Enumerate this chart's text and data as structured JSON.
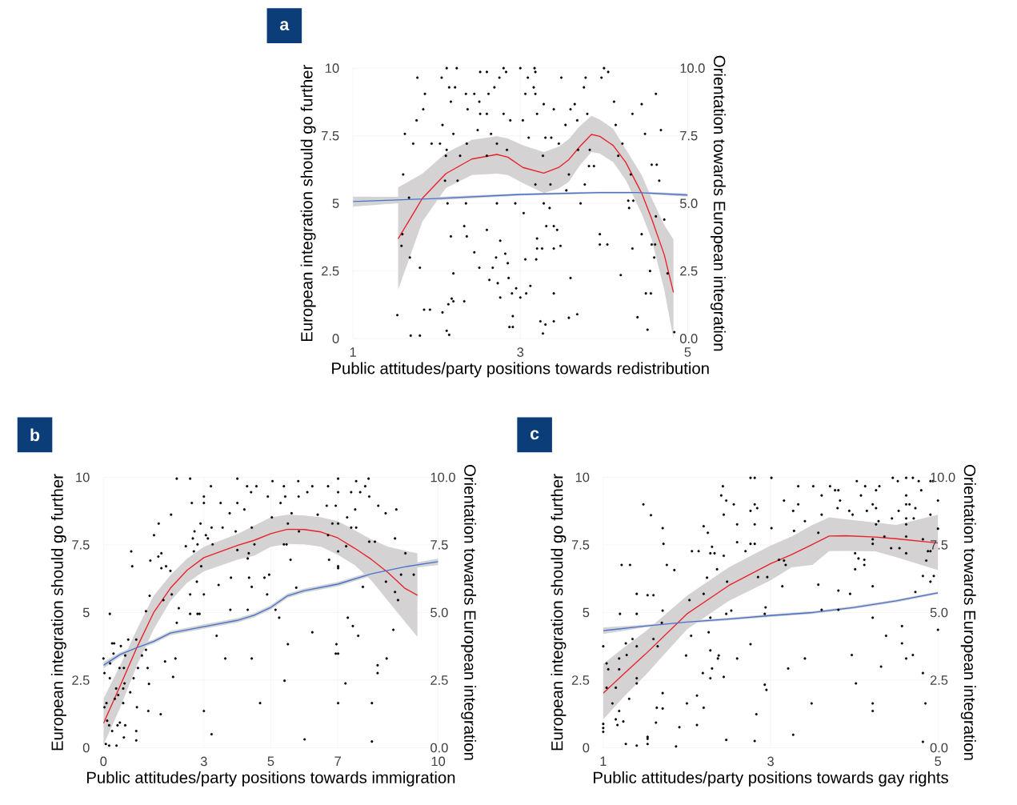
{
  "chart_data": [
    {
      "type": "scatter",
      "title": "a",
      "xlabel": "Public attitudes/party positions towards redistribution",
      "ylabel": "European integration should go further",
      "y2label": "Orientation towards European integration",
      "xlim": [
        1,
        5
      ],
      "xticks": [
        1,
        3,
        5
      ],
      "ylim": [
        0,
        10
      ],
      "yticks": [
        0,
        2.5,
        5,
        7.5,
        10
      ],
      "y2lim": [
        0,
        10
      ],
      "y2ticks": [
        {
          "value": 0,
          "label": "0.0"
        },
        {
          "value": 2.5,
          "label": "2.5"
        },
        {
          "value": 5,
          "label": "5.0"
        },
        {
          "value": 7.5,
          "label": "7.5"
        },
        {
          "value": 10,
          "label": "10.0"
        }
      ],
      "grid": true,
      "series": [
        {
          "color": "#000000",
          "x": [
            2.12,
            2.24,
            2.8,
            3.0,
            3.17,
            4.0,
            2.52,
            2.6,
            2.83,
            3.18,
            4.05,
            1.77,
            2.06,
            2.75,
            3.09,
            3.49,
            3.78,
            3.97,
            2.15,
            2.22,
            2.69,
            3.16,
            3.76,
            1.86,
            2.35,
            2.45,
            2.62,
            3.06,
            3.18,
            4.62,
            2.17,
            2.51,
            4.12,
            3.28,
            3.65,
            4.45,
            1.84,
            2.37,
            3.4,
            3.6,
            2.52,
            2.6,
            2.8,
            3.2,
            3.8,
            4.34,
            1.76,
            2.88,
            3.03,
            3.68,
            2.07,
            3.54,
            4.14,
            2.49,
            4.68,
            1.62,
            2.2,
            2.65,
            4.49,
            3.1,
            3.3,
            3.37,
            1.72,
            1.94,
            2.04,
            2.36,
            2.72,
            3.46,
            4.22,
            2.12,
            2.84,
            3.69,
            3.83,
            2.11,
            2.28,
            2.6,
            3.27,
            4.17,
            4.57,
            4.63,
            3.82,
            3.88,
            1.6,
            3.58,
            4.32,
            2.1,
            2.25,
            4.66,
            3.18,
            3.36,
            3.77,
            3.55,
            1.67,
            4.29,
            4.35,
            2.13,
            2.35,
            2.72,
            2.94,
            3.28,
            3.72,
            3.35,
            4.3,
            3.04,
            4.62,
            4.72,
            2.33,
            3.31,
            3.4,
            2.6,
            3.44,
            1.59,
            3.95,
            4.45,
            2.17,
            2.36,
            3.2,
            2.76,
            3.95,
            4.04,
            4.57,
            4.61,
            1.58,
            3.48,
            3.2,
            3.26,
            3.4,
            4.34,
            2.45,
            2.82,
            1.68,
            2.71,
            4.6,
            3.06,
            3.19,
            2.85,
            1.8,
            2.51,
            2.67,
            4.55,
            2.2,
            4.76,
            4.2,
            2.86,
            3.6,
            2.63,
            2.73,
            3.12,
            2.95,
            2.9,
            3.07,
            3.4,
            4.5,
            4.56,
            2.76,
            3.0,
            2.18,
            2.2,
            2.33,
            2.14,
            1.85,
            1.92,
            2.07,
            3.68,
            1.53,
            2.91,
            4.4,
            3.58,
            3.24,
            3.4,
            3.3,
            2.87,
            2.91,
            4.52,
            2.12,
            4.84,
            3.27,
            2.15,
            1.69,
            1.8
          ],
          "values": [
            10,
            10,
            10,
            10,
            10,
            10,
            9.86,
            9.86,
            9.86,
            9.86,
            9.86,
            9.65,
            9.65,
            9.65,
            9.65,
            9.65,
            9.65,
            9.65,
            9.29,
            9.29,
            9.29,
            9.29,
            9.29,
            9.05,
            9.05,
            9.05,
            9.05,
            9.05,
            9.05,
            9.05,
            8.76,
            8.76,
            8.76,
            8.67,
            8.67,
            8.67,
            8.48,
            8.48,
            8.48,
            8.48,
            8.31,
            8.31,
            8.31,
            8.31,
            8.31,
            8.31,
            8.07,
            8.07,
            8.07,
            8.07,
            7.9,
            7.9,
            7.9,
            7.71,
            7.71,
            7.57,
            7.57,
            7.57,
            7.57,
            7.43,
            7.43,
            7.43,
            7.21,
            7.21,
            7.21,
            7.21,
            7.21,
            7.21,
            7.21,
            6.98,
            6.98,
            6.98,
            6.98,
            6.76,
            6.76,
            6.76,
            6.76,
            6.76,
            6.43,
            6.43,
            6.38,
            6.38,
            6.07,
            6.07,
            6.07,
            5.84,
            5.84,
            5.84,
            5.7,
            5.7,
            5.7,
            5.48,
            5.21,
            5.1,
            5.1,
            5.0,
            5.0,
            5.0,
            5.0,
            5.0,
            5.0,
            4.83,
            4.83,
            4.64,
            4.52,
            4.4,
            4.16,
            4.16,
            4.16,
            4.02,
            4.02,
            3.86,
            3.86,
            3.86,
            3.78,
            3.78,
            3.7,
            3.62,
            3.48,
            3.48,
            3.48,
            3.48,
            3.43,
            3.43,
            3.33,
            3.33,
            3.33,
            3.33,
            3.19,
            3.14,
            3.0,
            3.0,
            3.0,
            2.93,
            2.93,
            2.79,
            2.62,
            2.62,
            2.62,
            2.5,
            2.41,
            2.41,
            2.35,
            2.24,
            2.24,
            2.17,
            2.05,
            1.95,
            1.86,
            1.67,
            1.67,
            1.67,
            1.67,
            1.67,
            1.52,
            1.52,
            1.48,
            1.38,
            1.38,
            1.27,
            1.07,
            1.07,
            0.97,
            0.9,
            0.87,
            0.83,
            0.79,
            0.77,
            0.64,
            0.64,
            0.52,
            0.43,
            0.43,
            0.33,
            0.29,
            0.24,
            0.19,
            0.14,
            0.11,
            0.11
          ]
        },
        {
          "type": "line",
          "color": "#e8212a",
          "x": [
            1.54,
            1.83,
            2.11,
            2.42,
            2.72,
            2.85,
            3.03,
            3.28,
            3.46,
            3.58,
            3.71,
            3.85,
            3.95,
            4.11,
            4.26,
            4.45,
            4.57,
            4.72,
            4.83
          ],
          "values": [
            3.69,
            5.19,
            6.1,
            6.64,
            6.81,
            6.71,
            6.33,
            6.12,
            6.33,
            6.62,
            7.1,
            7.55,
            7.48,
            7.14,
            6.52,
            5.38,
            4.43,
            3.1,
            1.71
          ],
          "upper": [
            5.59,
            6.1,
            6.86,
            7.35,
            7.48,
            7.4,
            7.15,
            6.9,
            7.1,
            7.38,
            7.85,
            8.24,
            8.1,
            7.76,
            7.0,
            6.05,
            5.19,
            4.2,
            3.67
          ],
          "lower": [
            1.81,
            4.33,
            5.57,
            6.05,
            6.1,
            6.05,
            5.75,
            5.38,
            5.55,
            5.8,
            6.4,
            6.9,
            6.85,
            6.52,
            5.86,
            4.62,
            3.67,
            1.8,
            0.0
          ]
        },
        {
          "type": "line",
          "color": "#4a70c9",
          "x": [
            1,
            2,
            3,
            3.95,
            4.4,
            5
          ],
          "values": [
            5.07,
            5.18,
            5.33,
            5.4,
            5.4,
            5.31
          ],
          "lower": [
            4.88,
            5.12,
            5.29,
            5.36,
            5.36,
            5.25
          ],
          "upper": [
            5.25,
            5.24,
            5.37,
            5.44,
            5.44,
            5.37
          ]
        }
      ]
    },
    {
      "type": "scatter",
      "title": "b",
      "xlabel": "Public attitudes/party positions towards immigration",
      "ylabel": "European integration should go further",
      "y2label": "Orientation towards European integration",
      "xlim": [
        0,
        10
      ],
      "xticks": [
        0,
        3,
        5,
        7,
        10
      ],
      "ylim": [
        0,
        10
      ],
      "yticks": [
        0,
        2.5,
        5,
        7.5,
        10
      ],
      "y2lim": [
        0,
        10
      ],
      "y2ticks": [
        {
          "value": 0,
          "label": "0.0"
        },
        {
          "value": 2.5,
          "label": "2.5"
        },
        {
          "value": 5,
          "label": "5.0"
        },
        {
          "value": 7.5,
          "label": "7.5"
        },
        {
          "value": 10,
          "label": "10.0"
        }
      ],
      "grid": true,
      "series": [
        {
          "color": "#000000",
          "x": [
            2.19,
            2.59,
            4.0,
            7.92,
            7.01,
            5.05,
            5.82,
            7.55,
            3.21,
            4.29,
            4.57,
            5.39,
            6.24,
            6.71,
            7.82,
            4.41,
            6.09,
            7.01,
            7.4,
            7.67,
            3.0,
            4.91,
            5.43,
            5.83,
            7.94,
            2.64,
            3.0,
            3.5,
            4.0,
            5.29,
            6.67,
            6.94,
            8.21,
            4.21,
            7.52,
            8.75,
            3.77,
            5.62,
            8.43,
            2.02,
            6.4,
            5.03,
            7.28,
            1.65,
            2.9,
            5.51,
            6.84,
            7.01,
            3.23,
            3.56,
            4.43,
            7.4,
            7.55,
            2.72,
            3.95,
            5.84,
            1.51,
            3.06,
            6.71,
            2.67,
            3.12,
            8.71,
            7.94,
            8.11,
            2.81,
            3.26,
            4.51,
            5.39,
            5.47,
            2.46,
            7.25,
            4.0,
            0.83,
            2.7,
            7.01,
            1.73,
            4.34,
            9.02,
            1.64,
            4.31,
            5.59,
            6.74,
            1.4,
            0.86,
            2.92,
            7.01,
            1.87,
            1.73,
            7.01,
            2.0,
            8.89,
            9.27,
            4.95,
            3.81,
            4.81,
            4.35,
            2.79,
            8.44,
            3.44,
            4.43,
            7.75,
            5.76,
            8.71,
            2.04,
            2.59,
            3.0,
            4.89,
            1.38,
            1.79,
            8.8,
            2.25,
            3.79,
            4.31,
            5.14,
            1.27,
            0.19,
            2.59,
            2.81,
            2.87,
            5.25,
            7.3,
            2.19,
            7.45,
            8.66,
            6.24,
            3.38,
            7.61,
            0.74,
            0.98,
            0.26,
            0.32,
            5.51,
            6.96,
            0.52,
            1.27,
            6.94,
            7.01,
            0.3,
            1.15,
            0.65,
            0.0,
            2.15,
            3.64,
            4.43,
            8.46,
            1.84,
            0.2,
            8.19,
            0.48,
            0.61,
            1.03,
            1.32,
            0.03,
            8.19,
            2.08,
            0.19,
            0.9,
            5.41,
            0.63,
            7.23,
            1.36,
            0.38,
            0.59,
            0.8,
            0.44,
            0.34,
            0.09,
            0.59,
            4.68,
            7.01,
            8.02,
            0.03,
            1.0,
            1.34,
            3.0,
            1.71,
            0.11,
            0.49,
            0.17,
            0.42,
            0.65,
            0.26,
            0.98,
            3.23,
            0.61,
            6.01,
            0.98,
            8.02,
            0.07,
            0.17,
            0.39
          ],
          "values": [
            9.95,
            9.95,
            9.95,
            9.95,
            9.95,
            9.86,
            9.86,
            9.86,
            9.67,
            9.67,
            9.67,
            9.67,
            9.67,
            9.67,
            9.67,
            9.45,
            9.45,
            9.45,
            9.45,
            9.45,
            9.29,
            9.29,
            9.29,
            9.29,
            9.29,
            9.05,
            9.05,
            9.05,
            9.05,
            9.05,
            8.95,
            8.95,
            8.95,
            8.81,
            8.81,
            8.81,
            8.67,
            8.67,
            8.67,
            8.62,
            8.62,
            8.52,
            8.52,
            8.29,
            8.29,
            8.29,
            8.29,
            8.29,
            8.14,
            8.14,
            8.14,
            8.14,
            8.14,
            8.0,
            8.0,
            8.0,
            7.86,
            7.86,
            7.86,
            7.74,
            7.74,
            7.74,
            7.62,
            7.62,
            7.52,
            7.52,
            7.52,
            7.52,
            7.52,
            7.45,
            7.45,
            7.31,
            7.26,
            7.26,
            7.26,
            7.19,
            7.19,
            7.19,
            7.07,
            7.0,
            6.95,
            6.95,
            6.92,
            6.71,
            6.71,
            6.71,
            6.71,
            6.64,
            6.64,
            6.54,
            6.4,
            6.4,
            6.4,
            6.29,
            6.29,
            6.29,
            6.14,
            6.14,
            6.02,
            5.95,
            5.95,
            5.92,
            5.76,
            5.67,
            5.67,
            5.67,
            5.67,
            5.62,
            5.46,
            5.46,
            5.16,
            5.1,
            5.1,
            5.1,
            5.05,
            4.95,
            4.95,
            4.95,
            4.95,
            4.81,
            4.81,
            4.62,
            4.5,
            4.36,
            4.27,
            4.14,
            4.14,
            4.0,
            4.0,
            3.86,
            3.86,
            3.83,
            3.83,
            3.76,
            3.62,
            3.48,
            3.48,
            3.48,
            3.41,
            3.41,
            3.3,
            3.3,
            3.3,
            3.3,
            3.3,
            3.19,
            3.12,
            3.05,
            2.95,
            2.95,
            2.95,
            2.95,
            2.76,
            2.76,
            2.62,
            2.57,
            2.57,
            2.48,
            2.38,
            2.38,
            2.36,
            2.19,
            2.19,
            2.05,
            1.95,
            1.81,
            1.65,
            1.65,
            1.65,
            1.65,
            1.65,
            1.5,
            1.5,
            1.36,
            1.36,
            1.24,
            1.0,
            0.93,
            0.83,
            0.83,
            0.83,
            0.62,
            0.62,
            0.5,
            0.38,
            0.31,
            0.27,
            0.23,
            0.14,
            0.08,
            0.08
          ]
        },
        {
          "type": "line",
          "color": "#e8212a",
          "x": [
            0,
            0.5,
            1.0,
            1.5,
            2.0,
            2.5,
            3.0,
            4.0,
            4.5,
            5.0,
            5.5,
            6.0,
            6.5,
            7.0,
            7.5,
            8.0,
            8.5,
            9.0,
            9.38
          ],
          "values": [
            0.9,
            2.29,
            3.71,
            5.0,
            5.9,
            6.57,
            7.03,
            7.48,
            7.67,
            7.92,
            8.08,
            8.07,
            7.98,
            7.76,
            7.38,
            6.97,
            6.48,
            5.9,
            5.64
          ],
          "upper": [
            1.81,
            3.05,
            4.38,
            5.62,
            6.38,
            7.0,
            7.43,
            7.9,
            8.21,
            8.52,
            8.62,
            8.59,
            8.52,
            8.38,
            8.05,
            7.71,
            7.43,
            7.29,
            7.19
          ],
          "lower": [
            0.1,
            1.48,
            3.05,
            4.38,
            5.43,
            6.1,
            6.52,
            6.95,
            7.1,
            7.43,
            7.54,
            7.52,
            7.43,
            7.14,
            6.76,
            6.19,
            5.43,
            4.67,
            4.1
          ]
        },
        {
          "type": "line",
          "color": "#4a70c9",
          "x": [
            0,
            0.5,
            1.0,
            1.5,
            2.0,
            3.0,
            4.0,
            4.5,
            5.0,
            5.5,
            6.0,
            7.0,
            8.0,
            9.0,
            10
          ],
          "values": [
            3.05,
            3.45,
            3.7,
            3.93,
            4.24,
            4.48,
            4.71,
            4.9,
            5.19,
            5.62,
            5.81,
            6.05,
            6.43,
            6.69,
            6.88
          ],
          "lower": [
            2.93,
            3.37,
            3.62,
            3.85,
            4.16,
            4.4,
            4.63,
            4.82,
            5.11,
            5.54,
            5.73,
            5.97,
            6.35,
            6.61,
            6.76
          ],
          "upper": [
            3.17,
            3.53,
            3.78,
            4.01,
            4.32,
            4.56,
            4.79,
            4.98,
            5.27,
            5.7,
            5.89,
            6.13,
            6.51,
            6.77,
            7.0
          ]
        }
      ]
    },
    {
      "type": "scatter",
      "title": "c",
      "xlabel": "Public attitudes/party positions towards gay rights",
      "ylabel": "European integration should go further",
      "y2label": "Orientation towards European integration",
      "xlim": [
        1,
        5
      ],
      "xticks": [
        1,
        3,
        5
      ],
      "ylim": [
        0,
        10
      ],
      "yticks": [
        0,
        2.5,
        5,
        7.5,
        10
      ],
      "y2lim": [
        0,
        10
      ],
      "y2ticks": [
        {
          "value": 0,
          "label": "0.0"
        },
        {
          "value": 2.5,
          "label": "2.5"
        },
        {
          "value": 5,
          "label": "5.0"
        },
        {
          "value": 7.5,
          "label": "7.5"
        },
        {
          "value": 10,
          "label": "10.0"
        }
      ],
      "grid": true,
      "series": [
        {
          "color": "#000000",
          "x": [
            2.76,
            2.81,
            3.01,
            4.46,
            4.62,
            4.7,
            4.03,
            4.52,
            4.77,
            4.91,
            4.94,
            2.43,
            3.33,
            3.51,
            3.71,
            4.13,
            4.3,
            3.77,
            3.81,
            4.26,
            4.8,
            2.41,
            3.61,
            4.08,
            4.62,
            2.47,
            3.16,
            3.83,
            5.0,
            1.48,
            2.56,
            2.81,
            3.33,
            4.22,
            4.62,
            4.66,
            2.84,
            3.8,
            4.26,
            4.73,
            2.76,
            3.27,
            3.94,
            4.15,
            4.53,
            2.44,
            3.61,
            3.98,
            4.91,
            1.57,
            4.71,
            4.45,
            4.62,
            3.41,
            4.29,
            2.6,
            2.81,
            4.26,
            4.62,
            2.2,
            1.71,
            3.01,
            5.0,
            3.28,
            2.25,
            3.57,
            4.36,
            4.62,
            4.22,
            4.82,
            2.6,
            1.72,
            2.76,
            2.81,
            4.22,
            2.3,
            4.44,
            4.54,
            2.06,
            2.14,
            2.7,
            4.88,
            4.91,
            2.28,
            2.33,
            4.01,
            4.62,
            2.44,
            4.05,
            3.1,
            4.12,
            3.16,
            4.86,
            1.22,
            1.32,
            1.76,
            3.18,
            4.12,
            2.36,
            4.01,
            1.85,
            4.82,
            4.95,
            2.85,
            2.96,
            2.24,
            2.48,
            4.91,
            3.57,
            3.14,
            4.22,
            3.81,
            4.73,
            1.4,
            2.2,
            3.95,
            1.6,
            1.53,
            2.03,
            2.94,
            3.61,
            3.81,
            1.71,
            2.53,
            1.2,
            1.4,
            2.47,
            2.93,
            2.28,
            4.22,
            1.7,
            4.57,
            5.0,
            2.26,
            2.05,
            4.38,
            1.35,
            1.6,
            1.27,
            4.57,
            2.76,
            1.0,
            1.4,
            1.65,
            2.28,
            1.28,
            3.97,
            4.7,
            1.99,
            2.38,
            1.19,
            2.37,
            2.6,
            3.41,
            4.62,
            1.04,
            4.32,
            2.3,
            3.21,
            1.06,
            1.19,
            2.19,
            4.82,
            2.44,
            2.28,
            1.4,
            1.4,
            4.02,
            2.93,
            1.04,
            1.15,
            2.95,
            1.71,
            2.12,
            1.31,
            1.11,
            2.0,
            3.49,
            4.22,
            4.85,
            1.64,
            2.2,
            1.71,
            1.19,
            4.22,
            2.83,
            1.15,
            1.24,
            1.63,
            1.0,
            1.17,
            2.12,
            1.91,
            1.0,
            1.0,
            3.27,
            1.53,
            1.53,
            2.47,
            2.81,
            4.82,
            1.27,
            1.53,
            1.4,
            1.87
          ],
          "values": [
            9.98,
            9.98,
            9.98,
            9.98,
            9.98,
            9.98,
            9.86,
            9.86,
            9.86,
            9.86,
            9.86,
            9.67,
            9.67,
            9.67,
            9.67,
            9.67,
            9.67,
            9.52,
            9.52,
            9.52,
            9.52,
            9.33,
            9.33,
            9.33,
            9.33,
            9.14,
            9.14,
            9.14,
            9.14,
            9.0,
            9.0,
            9.0,
            9.0,
            9.0,
            9.0,
            9.0,
            8.86,
            8.86,
            8.86,
            8.86,
            8.76,
            8.76,
            8.76,
            8.76,
            8.76,
            8.62,
            8.62,
            8.62,
            8.62,
            8.6,
            8.48,
            8.48,
            8.48,
            8.38,
            8.38,
            8.26,
            8.26,
            8.26,
            8.26,
            8.19,
            8.12,
            8.12,
            8.1,
            8.02,
            7.95,
            7.95,
            7.81,
            7.81,
            7.71,
            7.71,
            7.6,
            7.54,
            7.54,
            7.54,
            7.54,
            7.43,
            7.38,
            7.38,
            7.27,
            7.27,
            7.27,
            7.27,
            7.27,
            7.19,
            7.19,
            7.19,
            7.19,
            7.1,
            7.0,
            6.95,
            6.95,
            6.92,
            6.92,
            6.76,
            6.76,
            6.76,
            6.76,
            6.76,
            6.6,
            6.6,
            6.57,
            6.35,
            6.35,
            6.31,
            6.31,
            6.29,
            6.14,
            6.14,
            6.03,
            5.97,
            5.97,
            5.81,
            5.76,
            5.69,
            5.69,
            5.69,
            5.64,
            5.64,
            5.46,
            5.19,
            5.1,
            5.1,
            5.07,
            5.07,
            4.95,
            4.95,
            4.95,
            4.95,
            4.81,
            4.81,
            4.62,
            4.5,
            4.36,
            4.27,
            4.14,
            4.14,
            4.02,
            4.02,
            3.86,
            3.86,
            3.83,
            3.75,
            3.75,
            3.75,
            3.6,
            3.43,
            3.43,
            3.43,
            3.41,
            3.41,
            3.3,
            3.3,
            3.3,
            3.3,
            3.3,
            3.12,
            3.0,
            2.93,
            2.93,
            2.9,
            2.9,
            2.76,
            2.76,
            2.62,
            2.57,
            2.57,
            2.38,
            2.38,
            2.33,
            2.22,
            2.22,
            2.14,
            2.02,
            1.93,
            1.81,
            1.64,
            1.64,
            1.64,
            1.64,
            1.64,
            1.48,
            1.48,
            1.45,
            1.36,
            1.36,
            1.24,
            1.05,
            0.97,
            0.93,
            0.88,
            0.84,
            0.84,
            0.76,
            0.73,
            0.59,
            0.48,
            0.4,
            0.33,
            0.29,
            0.25,
            0.22,
            0.14,
            0.14,
            0.08,
            0.05
          ]
        },
        {
          "type": "line",
          "color": "#e8212a",
          "x": [
            1.0,
            1.25,
            1.5,
            2.0,
            2.5,
            3.0,
            3.25,
            3.5,
            3.7,
            3.9,
            4.25,
            4.5,
            5.0
          ],
          "values": [
            2.02,
            2.74,
            3.45,
            4.95,
            6.0,
            6.81,
            7.14,
            7.52,
            7.83,
            7.84,
            7.79,
            7.73,
            7.57
          ],
          "upper": [
            3.1,
            3.71,
            4.29,
            5.62,
            6.67,
            7.48,
            7.81,
            8.24,
            8.52,
            8.45,
            8.33,
            8.24,
            8.62
          ],
          "lower": [
            1.05,
            1.9,
            2.67,
            4.38,
            5.43,
            6.19,
            6.67,
            6.76,
            7.27,
            7.28,
            7.26,
            7.05,
            6.57
          ]
        },
        {
          "type": "line",
          "color": "#4a70c9",
          "x": [
            1.0,
            1.5,
            2.0,
            2.5,
            3.0,
            3.5,
            4.0,
            4.5,
            5.0
          ],
          "values": [
            4.33,
            4.5,
            4.65,
            4.76,
            4.89,
            5.0,
            5.19,
            5.43,
            5.73
          ],
          "lower": [
            4.21,
            4.45,
            4.6,
            4.71,
            4.84,
            4.95,
            5.14,
            5.38,
            5.68
          ],
          "upper": [
            4.45,
            4.55,
            4.7,
            4.81,
            4.94,
            5.05,
            5.24,
            5.48,
            5.78
          ]
        }
      ]
    }
  ]
}
